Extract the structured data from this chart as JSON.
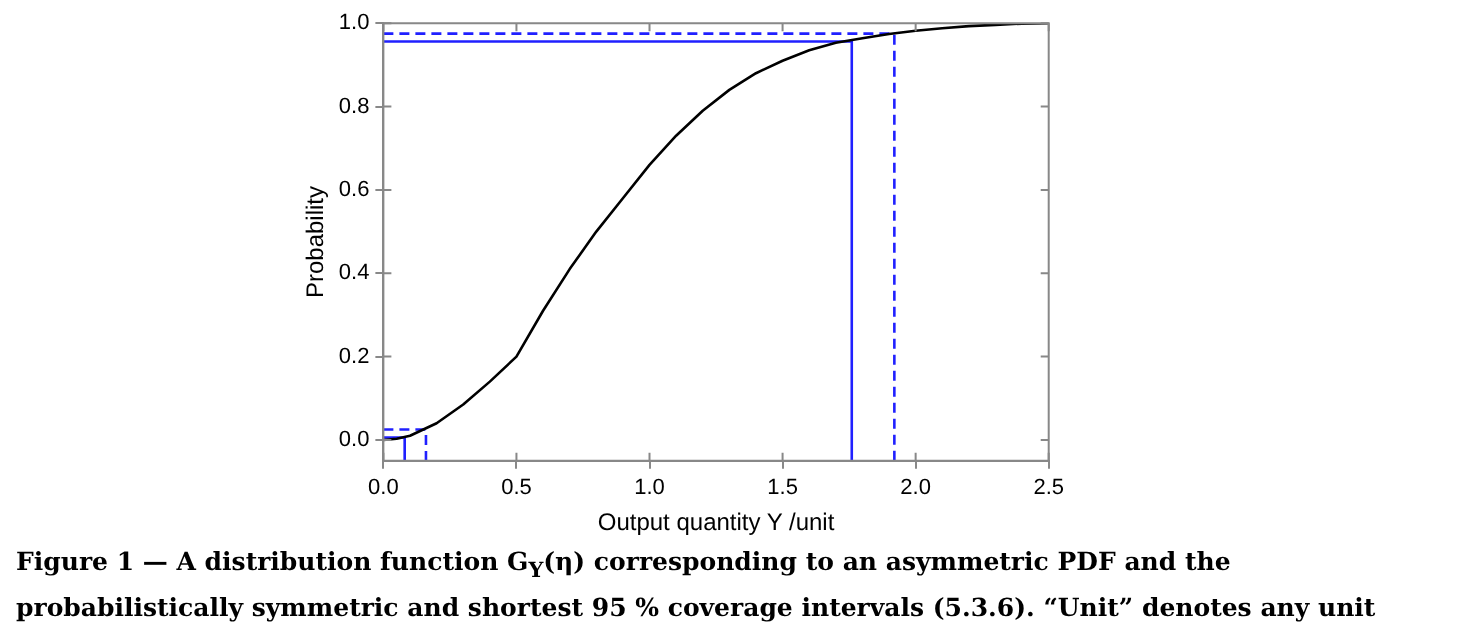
{
  "chart_data": {
    "type": "line",
    "xlabel": "Output quantity Y /unit",
    "ylabel": "Probability",
    "xlim": [
      0,
      2.5
    ],
    "xticks": [
      {
        "value": 0,
        "label": "0.0"
      },
      0.5,
      {
        "value": 1,
        "label": "1.0"
      },
      1.5,
      {
        "value": 2,
        "label": "2.0"
      },
      2.5
    ],
    "ylim": [
      -0.05,
      1
    ],
    "yticks": [
      {
        "value": 0,
        "label": "0.0"
      },
      0.2,
      0.4,
      0.6,
      0.8,
      {
        "value": 1,
        "label": "1.0"
      }
    ],
    "grid": false,
    "legend": false,
    "marker": "none",
    "series": [
      {
        "color": "#000000",
        "line_style": "solid",
        "x": [
          0,
          0.05,
          0.1,
          0.15,
          0.2,
          0.3,
          0.4,
          0.5,
          0.6,
          0.7,
          0.8,
          0.9,
          1.0,
          1.1,
          1.2,
          1.3,
          1.4,
          1.5,
          1.6,
          1.7,
          1.8,
          1.9,
          2.0,
          2.1,
          2.2,
          2.3,
          2.4,
          2.5
        ],
        "values": [
          0,
          0.003,
          0.01,
          0.025,
          0.04,
          0.085,
          0.14,
          0.2,
          0.31,
          0.41,
          0.5,
          0.58,
          0.66,
          0.73,
          0.79,
          0.84,
          0.88,
          0.91,
          0.935,
          0.953,
          0.964,
          0.974,
          0.982,
          0.988,
          0.993,
          0.996,
          0.999,
          1.0
        ]
      },
      {
        "color": "#2020ff",
        "line_style": "solid",
        "x": [
          0,
          0.08,
          0.08
        ],
        "values": [
          0.006,
          0.006,
          -0.05
        ]
      },
      {
        "color": "#2020ff",
        "line_style": "solid",
        "x": [
          0,
          1.76,
          1.76
        ],
        "values": [
          0.956,
          0.956,
          -0.05
        ]
      },
      {
        "color": "#2020ff",
        "line_style": "dashed",
        "x": [
          0,
          0.16,
          0.16
        ],
        "values": [
          0.025,
          0.025,
          -0.05
        ]
      },
      {
        "color": "#2020ff",
        "line_style": "dashed",
        "x": [
          0,
          1.92,
          1.92
        ],
        "values": [
          0.975,
          0.975,
          -0.05
        ]
      }
    ],
    "annotations": [
      "Figure 1 — A distribution function G$_{Y}$(η) corresponding to an asymmetric PDF and the probabilistically symmetric and shortest 95 % coverage intervals (5.3.6). “Unit” denotes any unit"
    ]
  }
}
